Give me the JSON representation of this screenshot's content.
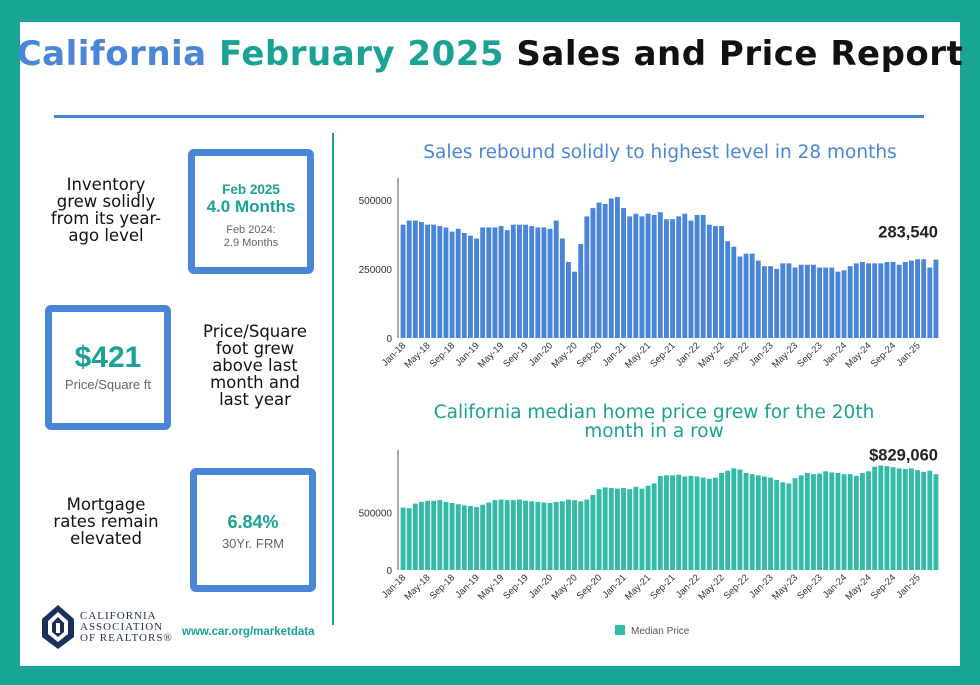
{
  "title": {
    "part1": "California",
    "part2": "February 2025",
    "part3": "Sales and Price Report"
  },
  "inventory": {
    "text": "Inventory grew solidly from its year-ago level",
    "current_label": "Feb 2025",
    "current_value": "4.0 Months",
    "prior_label": "Feb 2024:",
    "prior_value": "2.9 Months"
  },
  "price_sqft": {
    "value": "$421",
    "label": "Price/Square ft",
    "text": "Price/Square foot grew above last month and last year"
  },
  "mortgage": {
    "text": "Mortgage rates remain elevated",
    "value": "6.84%",
    "label": "30Yr. FRM"
  },
  "footer": {
    "org_line1": "CALIFORNIA",
    "org_line2": "ASSOCIATION",
    "org_line3": "OF REALTORS®",
    "url": "www.car.org/marketdata"
  },
  "colors": {
    "blue": "#4a86d8",
    "teal": "#1aa294",
    "border": "#19a596"
  },
  "chart_data": [
    {
      "type": "bar",
      "title": "Sales rebound solidly to highest level in 28 months",
      "color": "#4a86d8",
      "ylim": [
        0,
        550000
      ],
      "yticks": [
        0,
        250000,
        500000
      ],
      "ytick_labels": [
        "0",
        "250000",
        "500000"
      ],
      "x_tick_labels": [
        "Jan-18",
        "May-18",
        "Sep-18",
        "Jan-19",
        "May-19",
        "Sep-19",
        "Jan-20",
        "May-20",
        "Sep-20",
        "Jan-21",
        "May-21",
        "Sep-21",
        "Jan-22",
        "May-22",
        "Sep-22",
        "Jan-23",
        "May-23",
        "Sep-23",
        "Jan-24",
        "May-24",
        "Sep-24",
        "Jan-25"
      ],
      "last_value_label": "283,540",
      "values": [
        410000,
        425000,
        425000,
        420000,
        410000,
        410000,
        405000,
        400000,
        385000,
        395000,
        380000,
        370000,
        360000,
        400000,
        400000,
        400000,
        405000,
        390000,
        410000,
        410000,
        410000,
        405000,
        400000,
        400000,
        395000,
        425000,
        360000,
        275000,
        240000,
        340000,
        440000,
        470000,
        490000,
        485000,
        505000,
        510000,
        470000,
        440000,
        450000,
        440000,
        450000,
        445000,
        455000,
        430000,
        430000,
        440000,
        450000,
        425000,
        445000,
        445000,
        410000,
        405000,
        405000,
        350000,
        330000,
        295000,
        305000,
        305000,
        280000,
        260000,
        260000,
        250000,
        270000,
        270000,
        255000,
        265000,
        265000,
        265000,
        255000,
        255000,
        255000,
        240000,
        245000,
        260000,
        270000,
        275000,
        270000,
        270000,
        270000,
        275000,
        275000,
        265000,
        275000,
        280000,
        285000,
        285000,
        255000,
        283540
      ]
    },
    {
      "type": "bar",
      "title": "California median home price grew for the 20th month in a row",
      "color": "#33bba8",
      "legend": "Median Price",
      "ylim": [
        0,
        970000
      ],
      "yticks": [
        0,
        500000
      ],
      "ytick_labels": [
        "0",
        "500000"
      ],
      "x_tick_labels": [
        "Jan-18",
        "May-18",
        "Sep-18",
        "Jan-19",
        "May-19",
        "Sep-19",
        "Jan-20",
        "May-20",
        "Sep-20",
        "Jan-21",
        "May-21",
        "Sep-21",
        "Jan-22",
        "May-22",
        "Sep-22",
        "Jan-23",
        "May-23",
        "Sep-23",
        "Jan-24",
        "May-24",
        "Sep-24",
        "Jan-25"
      ],
      "last_value_label": "$829,060",
      "values": [
        540000,
        535000,
        575000,
        590000,
        600000,
        600000,
        605000,
        590000,
        580000,
        570000,
        560000,
        555000,
        545000,
        565000,
        585000,
        605000,
        610000,
        605000,
        605000,
        610000,
        600000,
        595000,
        590000,
        585000,
        580000,
        590000,
        595000,
        610000,
        605000,
        595000,
        610000,
        650000,
        700000,
        715000,
        710000,
        705000,
        710000,
        700000,
        720000,
        705000,
        730000,
        750000,
        815000,
        820000,
        820000,
        825000,
        810000,
        815000,
        810000,
        800000,
        790000,
        800000,
        840000,
        860000,
        880000,
        870000,
        840000,
        830000,
        820000,
        810000,
        800000,
        780000,
        760000,
        750000,
        795000,
        820000,
        840000,
        830000,
        835000,
        855000,
        845000,
        840000,
        830000,
        830000,
        815000,
        840000,
        855000,
        895000,
        905000,
        900000,
        890000,
        880000,
        875000,
        880000,
        865000,
        850000,
        860000,
        829060
      ]
    }
  ]
}
